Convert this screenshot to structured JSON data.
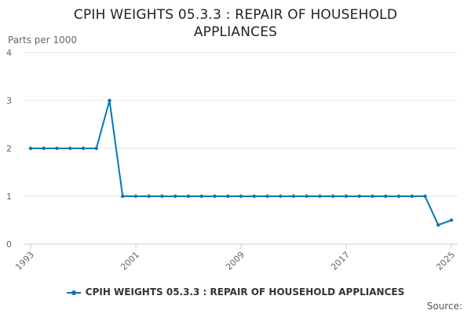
{
  "title_line1": "CPIH WEIGHTS 05.3.3 : REPAIR OF HOUSEHOLD",
  "title_line2": "APPLIANCES",
  "source_label": "Source:",
  "colors": {
    "series": "#0077b6",
    "grid": "#e6e6e6",
    "axis_text": "#666666"
  },
  "chart_data": {
    "type": "line",
    "title": "CPIH WEIGHTS 05.3.3 : REPAIR OF HOUSEHOLD APPLIANCES",
    "xlabel": "",
    "ylabel": "Parts per 1000",
    "ylim": [
      0,
      4
    ],
    "yticks": [
      0,
      1,
      2,
      3,
      4
    ],
    "xticks": [
      "1993",
      "2001",
      "2009",
      "2017",
      "2025"
    ],
    "grid": true,
    "legend_position": "bottom",
    "x": [
      1993,
      1994,
      1995,
      1996,
      1997,
      1998,
      1999,
      2000,
      2001,
      2002,
      2003,
      2004,
      2005,
      2006,
      2007,
      2008,
      2009,
      2010,
      2011,
      2012,
      2013,
      2014,
      2015,
      2016,
      2017,
      2018,
      2019,
      2020,
      2021,
      2022,
      2023,
      2024,
      2025
    ],
    "series": [
      {
        "name": "CPIH WEIGHTS 05.3.3 : REPAIR OF HOUSEHOLD APPLIANCES",
        "values": [
          2,
          2,
          2,
          2,
          2,
          2,
          3,
          1,
          1,
          1,
          1,
          1,
          1,
          1,
          1,
          1,
          1,
          1,
          1,
          1,
          1,
          1,
          1,
          1,
          1,
          1,
          1,
          1,
          1,
          1,
          1,
          0.4,
          0.5
        ]
      }
    ]
  }
}
